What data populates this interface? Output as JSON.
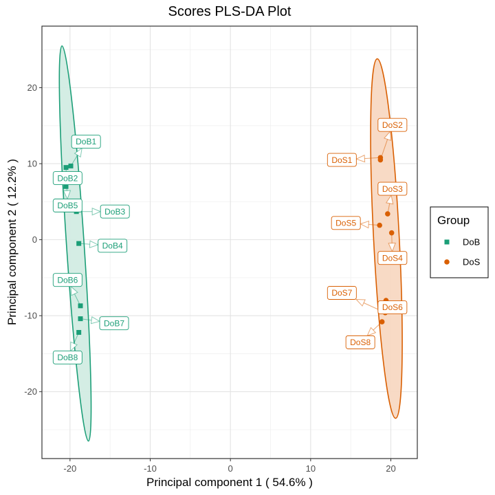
{
  "chart_data": {
    "type": "scatter",
    "title": "Scores PLS-DA Plot",
    "xlabel": "Principal component 1 ( 54.6% )",
    "ylabel": "Principal component 2 ( 12.2% )",
    "xlim": [
      -23.5,
      23.3
    ],
    "ylim": [
      -28.8,
      28.1
    ],
    "x_ticks": [
      -20,
      -10,
      0,
      10,
      20
    ],
    "y_ticks": [
      -20,
      -10,
      0,
      10,
      20
    ],
    "grid": true,
    "legend": {
      "title": "Group",
      "placement": "right"
    },
    "series": [
      {
        "name": "DoB",
        "color": "#1b9e77",
        "fill": "#d2ece3",
        "marker": "square",
        "ellipse": {
          "top": [
            -21.0,
            25.5
          ],
          "bottom": [
            -17.7,
            -26.5
          ],
          "half_width": 1.1
        },
        "points": [
          {
            "label": "DoB1",
            "x": -19.9,
            "y": 9.7,
            "label_x": -18.0,
            "label_y": 12.9
          },
          {
            "label": "DoB2",
            "x": -20.5,
            "y": 7.0,
            "label_x": -20.3,
            "label_y": 8.1
          },
          {
            "label": "DoB3",
            "x": -19.2,
            "y": 3.7,
            "label_x": -14.4,
            "label_y": 3.7
          },
          {
            "label": "DoB4",
            "x": -18.9,
            "y": -0.5,
            "label_x": -14.7,
            "label_y": -0.8
          },
          {
            "label": "DoB5",
            "x": -20.5,
            "y": 9.5,
            "label_x": -20.3,
            "label_y": 4.5
          },
          {
            "label": "DoB6",
            "x": -18.7,
            "y": -8.7,
            "label_x": -20.3,
            "label_y": -5.3
          },
          {
            "label": "DoB7",
            "x": -18.7,
            "y": -10.4,
            "label_x": -14.5,
            "label_y": -11.0
          },
          {
            "label": "DoB8",
            "x": -18.9,
            "y": -12.2,
            "label_x": -20.3,
            "label_y": -15.5
          }
        ]
      },
      {
        "name": "DoS",
        "color": "#d95f02",
        "fill": "#f8d8c2",
        "marker": "circle",
        "ellipse": {
          "top": [
            18.3,
            23.8
          ],
          "bottom": [
            20.6,
            -23.5
          ],
          "half_width": 1.6
        },
        "points": [
          {
            "label": "DoS1",
            "x": 18.7,
            "y": 10.8,
            "label_x": 13.9,
            "label_y": 10.5
          },
          {
            "label": "DoS2",
            "x": 18.7,
            "y": 10.5,
            "label_x": 20.2,
            "label_y": 15.1
          },
          {
            "label": "DoS3",
            "x": 19.6,
            "y": 3.4,
            "label_x": 20.2,
            "label_y": 6.7
          },
          {
            "label": "DoS4",
            "x": 20.1,
            "y": 0.9,
            "label_x": 20.2,
            "label_y": -2.4
          },
          {
            "label": "DoS5",
            "x": 18.6,
            "y": 1.9,
            "label_x": 14.4,
            "label_y": 2.2
          },
          {
            "label": "DoS6",
            "x": 19.4,
            "y": -8.0,
            "label_x": 20.2,
            "label_y": -8.9
          },
          {
            "label": "DoS7",
            "x": 19.3,
            "y": -9.6,
            "label_x": 13.9,
            "label_y": -7.0
          },
          {
            "label": "DoS8",
            "x": 18.9,
            "y": -10.8,
            "label_x": 16.2,
            "label_y": -13.5
          }
        ]
      }
    ]
  }
}
